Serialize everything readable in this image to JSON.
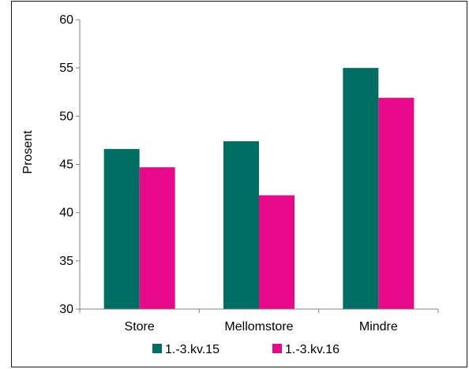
{
  "chart_data": {
    "type": "bar",
    "categories": [
      "Store",
      "Mellomstore",
      "Mindre"
    ],
    "series": [
      {
        "name": "1.-3.kv.15",
        "color": "#006e63",
        "values": [
          46.6,
          47.4,
          55.0
        ]
      },
      {
        "name": "1.-3.kv.16",
        "color": "#e8088a",
        "values": [
          44.7,
          41.8,
          51.9
        ]
      }
    ],
    "title": "",
    "xlabel": "",
    "ylabel": "Prosent",
    "ylim": [
      30,
      60
    ],
    "yticks": [
      30,
      35,
      40,
      45,
      50,
      55,
      60
    ],
    "grid": false,
    "legend_position": "bottom"
  }
}
